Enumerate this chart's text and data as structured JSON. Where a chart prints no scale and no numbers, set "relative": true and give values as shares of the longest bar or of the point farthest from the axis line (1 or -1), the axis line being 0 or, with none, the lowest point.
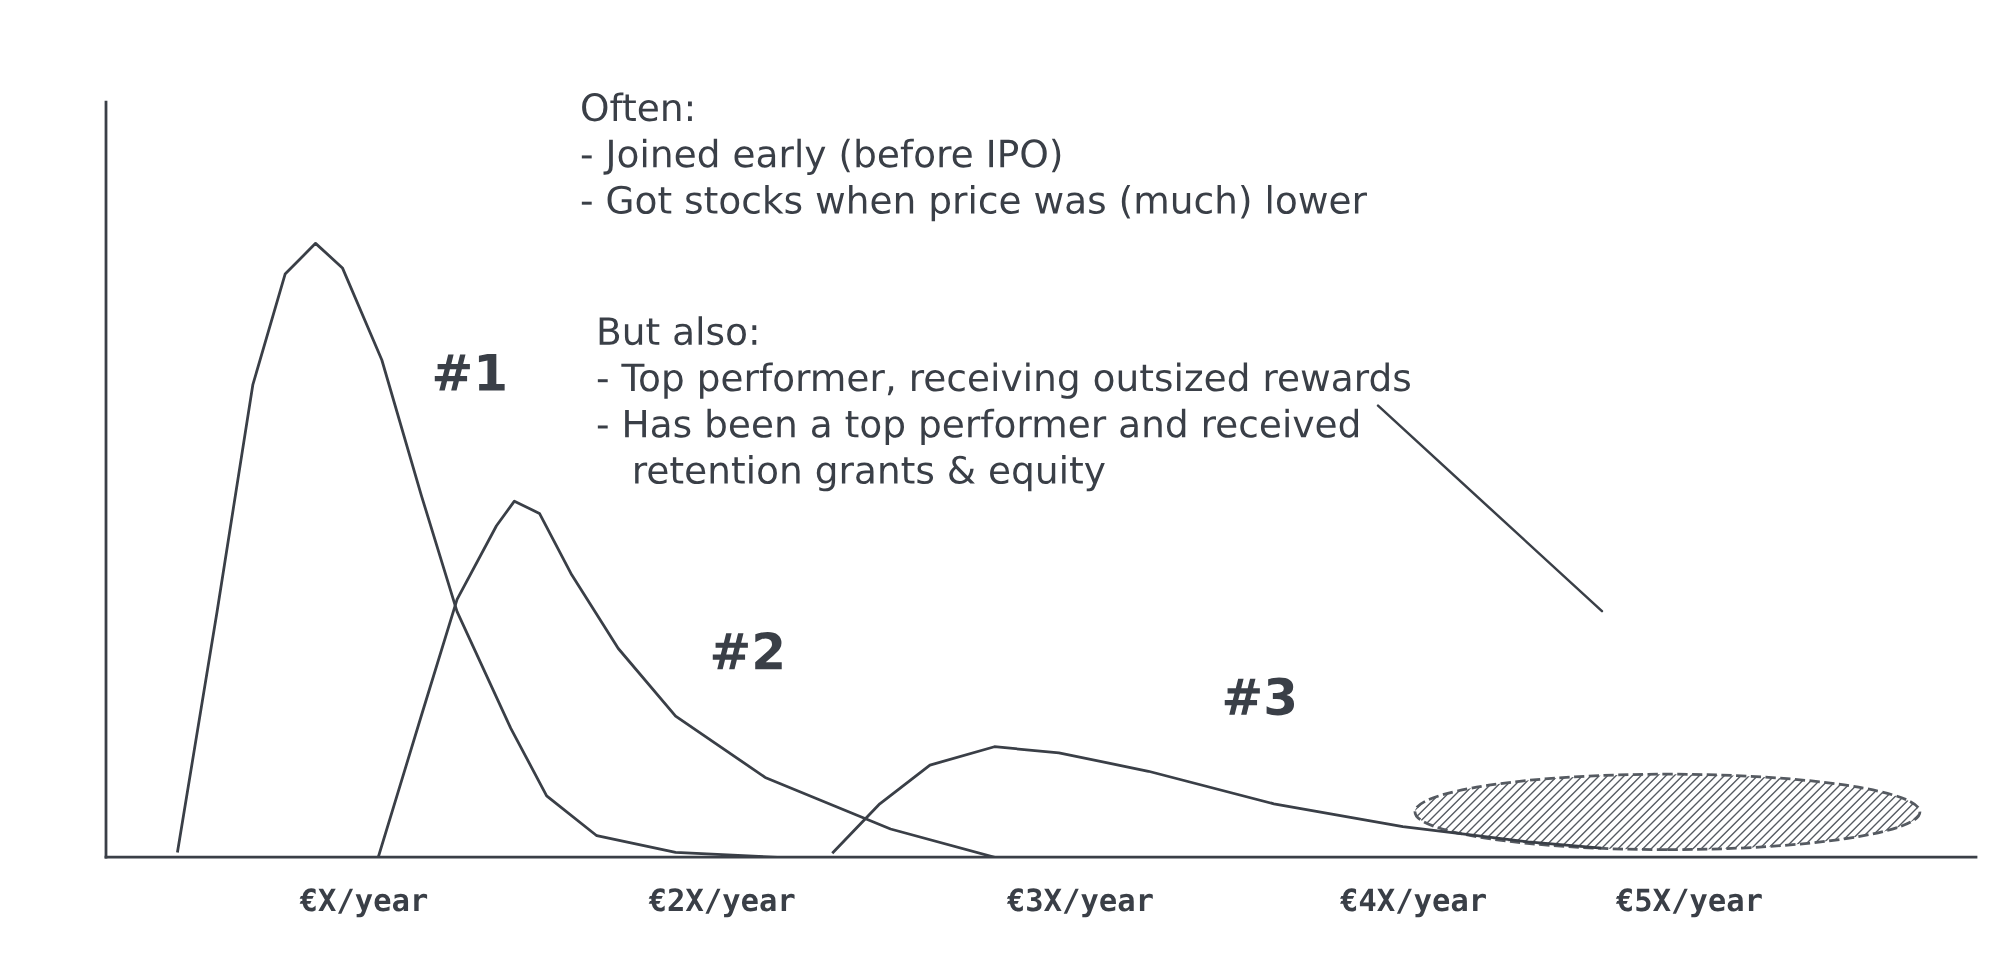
{
  "chart_data": {
    "type": "line",
    "relative": true,
    "xlim": [
      0.28,
      5.5
    ],
    "xticks": [
      {
        "value": 1.0,
        "label": "€X/year"
      },
      {
        "value": 2.0,
        "label": "€2X/year"
      },
      {
        "value": 3.0,
        "label": "€3X/year"
      },
      {
        "value": 3.93,
        "label": "€4X/year"
      },
      {
        "value": 4.7,
        "label": "€5X/year"
      }
    ],
    "series": [
      {
        "name": "#1",
        "color": "#3a3f47",
        "x": [
          0.48,
          0.59,
          0.69,
          0.78,
          0.865,
          0.94,
          1.05,
          1.16,
          1.26,
          1.41,
          1.51,
          1.65,
          1.87,
          2.15
        ],
        "values": [
          0.01,
          0.4,
          0.77,
          0.95,
          1.0,
          0.96,
          0.81,
          0.59,
          0.4,
          0.21,
          0.1,
          0.035,
          0.008,
          0
        ]
      },
      {
        "name": "#2",
        "color": "#3a3f47",
        "x": [
          1.04,
          1.16,
          1.26,
          1.37,
          1.42,
          1.49,
          1.58,
          1.71,
          1.87,
          2.12,
          2.47,
          2.76
        ],
        "values": [
          0,
          0.23,
          0.42,
          0.54,
          0.58,
          0.56,
          0.46,
          0.34,
          0.23,
          0.13,
          0.046,
          0
        ]
      },
      {
        "name": "#3",
        "color": "#3a3f47",
        "x": [
          2.31,
          2.44,
          2.58,
          2.76,
          2.94,
          3.19,
          3.54,
          3.9,
          4.25,
          4.45
        ],
        "values": [
          0.008,
          0.087,
          0.15,
          0.18,
          0.17,
          0.14,
          0.087,
          0.05,
          0.025,
          0.015
        ]
      }
    ],
    "annotations": [
      "Often:\n- Joined early (before IPO)\n- Got stocks when price was (much) lower",
      "But also:\n- Top performer, receiving outsized rewards\n- Has been a top performer and received\n   retention grants & equity"
    ],
    "grid": false,
    "legend": false,
    "marker": "none",
    "line_style": "solid"
  }
}
